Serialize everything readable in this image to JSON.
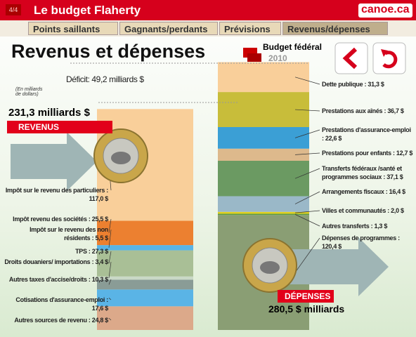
{
  "header": {
    "page_number": "4/4",
    "title": "Le budget Flaherty",
    "logo": "canoe",
    "logo_suffix": ".ca"
  },
  "tabs": [
    "Points saillants",
    "Gagnants/perdants",
    "Prévisions",
    "Revenus/dépenses"
  ],
  "title": "Revenus et dépenses",
  "budget_label": "Budget fédéral",
  "budget_year": "2010",
  "deficit": "Déficit: 49,2 milliards $",
  "units_note": "(En milliards de dollars)",
  "revenues": {
    "total": "231,3 milliards $",
    "banner": "REVENUS",
    "items": [
      {
        "label": "Impôt sur le revenu des particuliers : 117,0 $",
        "value": 117.0
      },
      {
        "label": "Impôt revenu des sociétés : 25,5 $",
        "value": 25.5
      },
      {
        "label": "Impôt sur le revenu des non résidents : 5,5 $",
        "value": 5.5
      },
      {
        "label": "TPS : 27,3 $",
        "value": 27.3
      },
      {
        "label": "Droits douaniers/ importations : 3,4 $",
        "value": 3.4
      },
      {
        "label": "Autres taxes d'accise/droits : 10,3 $",
        "value": 10.3
      },
      {
        "label": "Cotisations d'assurance-emploi : 17,6 $",
        "value": 17.6
      },
      {
        "label": "Autres sources de revenu : 24,8 $",
        "value": 24.8
      }
    ]
  },
  "expenses": {
    "total": "280,5 $ milliards",
    "banner": "DÉPENSES",
    "items": [
      {
        "label": "Dette publique : 31,3 $",
        "value": 31.3
      },
      {
        "label": "Prestations aux aînés : 36,7 $",
        "value": 36.7
      },
      {
        "label": "Prestations d'assurance-emploi : 22,6 $",
        "value": 22.6
      },
      {
        "label": "Prestations pour enfants : 12,7 $",
        "value": 12.7
      },
      {
        "label": "Transferts fédéraux /santé et programmes sociaux : 37,1 $",
        "value": 37.1
      },
      {
        "label": "Arrangements fiscaux : 16,4 $",
        "value": 16.4
      },
      {
        "label": "Villes et communautés : 2,0 $",
        "value": 2.0
      },
      {
        "label": "Autres transferts : 1,3 $",
        "value": 1.3
      },
      {
        "label": "Dépenses de programmes : 120,4 $",
        "value": 120.4
      }
    ]
  }
}
